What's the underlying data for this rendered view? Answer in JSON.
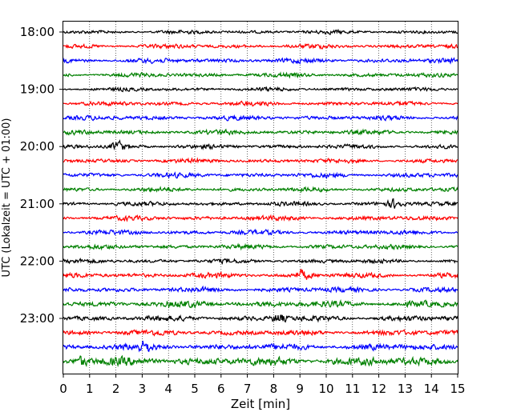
{
  "chart_data": {
    "type": "line",
    "title": "",
    "xlabel": "Zeit  [min]",
    "ylabel": "UTC (Lokalzeit = UTC + 01:00)",
    "xlim": [
      0,
      15
    ],
    "x_ticks": [
      "0",
      "1",
      "2",
      "3",
      "4",
      "5",
      "6",
      "7",
      "8",
      "9",
      "10",
      "11",
      "12",
      "13",
      "14",
      "15"
    ],
    "y_ticks": [
      "18:00",
      "19:00",
      "20:00",
      "21:00",
      "22:00",
      "23:00"
    ],
    "y_tick_rows": [
      0,
      4,
      8,
      12,
      16,
      20
    ],
    "grid": "vertical dotted at each minute",
    "trace_colors": [
      "#000000",
      "#ff0000",
      "#0000ff",
      "#008000"
    ],
    "series": [
      {
        "start": "18:00",
        "color": "#000000",
        "amp": 0.9,
        "bursts": []
      },
      {
        "start": "18:15",
        "color": "#ff0000",
        "amp": 1.0,
        "bursts": []
      },
      {
        "start": "18:30",
        "color": "#0000ff",
        "amp": 1.1,
        "bursts": []
      },
      {
        "start": "18:45",
        "color": "#008000",
        "amp": 1.0,
        "bursts": []
      },
      {
        "start": "19:00",
        "color": "#000000",
        "amp": 0.9,
        "bursts": []
      },
      {
        "start": "19:15",
        "color": "#ff0000",
        "amp": 1.0,
        "bursts": []
      },
      {
        "start": "19:30",
        "color": "#0000ff",
        "amp": 1.1,
        "bursts": []
      },
      {
        "start": "19:45",
        "color": "#008000",
        "amp": 1.1,
        "bursts": []
      },
      {
        "start": "20:00",
        "color": "#000000",
        "amp": 1.0,
        "bursts": [
          2.1
        ]
      },
      {
        "start": "20:15",
        "color": "#ff0000",
        "amp": 1.0,
        "bursts": []
      },
      {
        "start": "20:30",
        "color": "#0000ff",
        "amp": 1.1,
        "bursts": []
      },
      {
        "start": "20:45",
        "color": "#008000",
        "amp": 1.0,
        "bursts": []
      },
      {
        "start": "21:00",
        "color": "#000000",
        "amp": 1.0,
        "bursts": [
          12.6
        ]
      },
      {
        "start": "21:15",
        "color": "#ff0000",
        "amp": 1.1,
        "bursts": []
      },
      {
        "start": "21:30",
        "color": "#0000ff",
        "amp": 1.1,
        "bursts": []
      },
      {
        "start": "21:45",
        "color": "#008000",
        "amp": 1.1,
        "bursts": []
      },
      {
        "start": "22:00",
        "color": "#000000",
        "amp": 1.0,
        "bursts": []
      },
      {
        "start": "22:15",
        "color": "#ff0000",
        "amp": 1.2,
        "bursts": [
          9.1
        ]
      },
      {
        "start": "22:30",
        "color": "#0000ff",
        "amp": 1.2,
        "bursts": []
      },
      {
        "start": "22:45",
        "color": "#008000",
        "amp": 1.5,
        "bursts": []
      },
      {
        "start": "23:00",
        "color": "#000000",
        "amp": 1.3,
        "bursts": [
          8.2
        ]
      },
      {
        "start": "23:15",
        "color": "#ff0000",
        "amp": 1.3,
        "bursts": []
      },
      {
        "start": "23:30",
        "color": "#0000ff",
        "amp": 1.5,
        "bursts": [
          3.1
        ]
      },
      {
        "start": "23:45",
        "color": "#008000",
        "amp": 2.0,
        "bursts": [
          0.7
        ]
      }
    ]
  }
}
